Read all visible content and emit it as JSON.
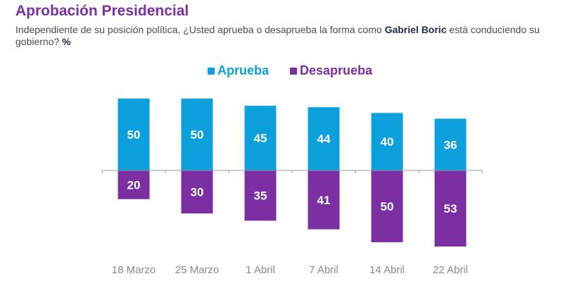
{
  "title": "Aprobación Presidencial",
  "subtitle": {
    "before": "Independiente de su posición política, ¿Usted aprueba o desaprueba la forma como ",
    "bold": "Gabriel Boric",
    "after": " está conduciendo su gobierno? ",
    "unit": "%"
  },
  "colors": {
    "aprueba": "#0ba0dc",
    "desaprueba": "#7b2fa3",
    "title": "#7b2fa3"
  },
  "chart_data": {
    "type": "bar",
    "stacking": "diverging (Aprueba above axis, Desaprueba below)",
    "categories": [
      "18 Marzo",
      "25 Marzo",
      "1 Abril",
      "7 Abril",
      "14 Abril",
      "22 Abril"
    ],
    "series": [
      {
        "name": "Aprueba",
        "values": [
          50,
          50,
          45,
          44,
          40,
          36
        ]
      },
      {
        "name": "Desaprueba",
        "values": [
          20,
          30,
          35,
          41,
          50,
          53
        ]
      }
    ],
    "legend": "top-center",
    "grid": false
  }
}
